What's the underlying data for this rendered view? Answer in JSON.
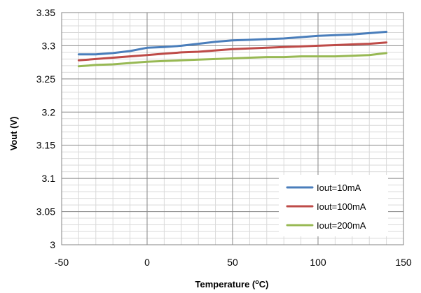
{
  "chart_data": {
    "type": "line",
    "title": "",
    "xlabel": "Temperature (",
    "xlabel_sup": "o",
    "xlabel_suffix": "C)",
    "ylabel": "Vout (V)",
    "xlim": [
      -50,
      150
    ],
    "ylim": [
      3.0,
      3.35
    ],
    "x_ticks": [
      -50,
      0,
      50,
      100,
      150
    ],
    "y_ticks": [
      3,
      3.05,
      3.1,
      3.15,
      3.2,
      3.25,
      3.3,
      3.35
    ],
    "x_tick_labels": [
      "-50",
      "0",
      "50",
      "100",
      "150"
    ],
    "y_tick_labels": [
      "3",
      "3.05",
      "3.1",
      "3.15",
      "3.2",
      "3.25",
      "3.3",
      "3.35"
    ],
    "x_minor_step": 10,
    "y_minor_step": 0.01,
    "grid": true,
    "legend_position": "bottom-right",
    "series": [
      {
        "name": "Iout=10mA",
        "color": "#4a7ebb",
        "x": [
          -40,
          -30,
          -20,
          -10,
          0,
          10,
          20,
          30,
          40,
          50,
          60,
          70,
          80,
          90,
          100,
          110,
          120,
          130,
          140
        ],
        "y": [
          3.287,
          3.287,
          3.289,
          3.292,
          3.297,
          3.298,
          3.3,
          3.303,
          3.306,
          3.308,
          3.309,
          3.31,
          3.311,
          3.313,
          3.315,
          3.316,
          3.317,
          3.319,
          3.321
        ]
      },
      {
        "name": "Iout=100mA",
        "color": "#be4b48",
        "x": [
          -40,
          -30,
          -20,
          -10,
          0,
          10,
          20,
          30,
          40,
          50,
          60,
          70,
          80,
          90,
          100,
          110,
          120,
          130,
          140
        ],
        "y": [
          3.278,
          3.28,
          3.282,
          3.284,
          3.286,
          3.288,
          3.29,
          3.291,
          3.293,
          3.295,
          3.296,
          3.297,
          3.298,
          3.299,
          3.3,
          3.301,
          3.302,
          3.303,
          3.305
        ]
      },
      {
        "name": "Iout=200mA",
        "color": "#98b954",
        "x": [
          -40,
          -30,
          -20,
          -10,
          0,
          10,
          20,
          30,
          40,
          50,
          60,
          70,
          80,
          90,
          100,
          110,
          120,
          130,
          140
        ],
        "y": [
          3.269,
          3.271,
          3.272,
          3.274,
          3.276,
          3.277,
          3.278,
          3.279,
          3.28,
          3.281,
          3.282,
          3.283,
          3.283,
          3.284,
          3.284,
          3.284,
          3.285,
          3.286,
          3.289
        ]
      }
    ]
  }
}
